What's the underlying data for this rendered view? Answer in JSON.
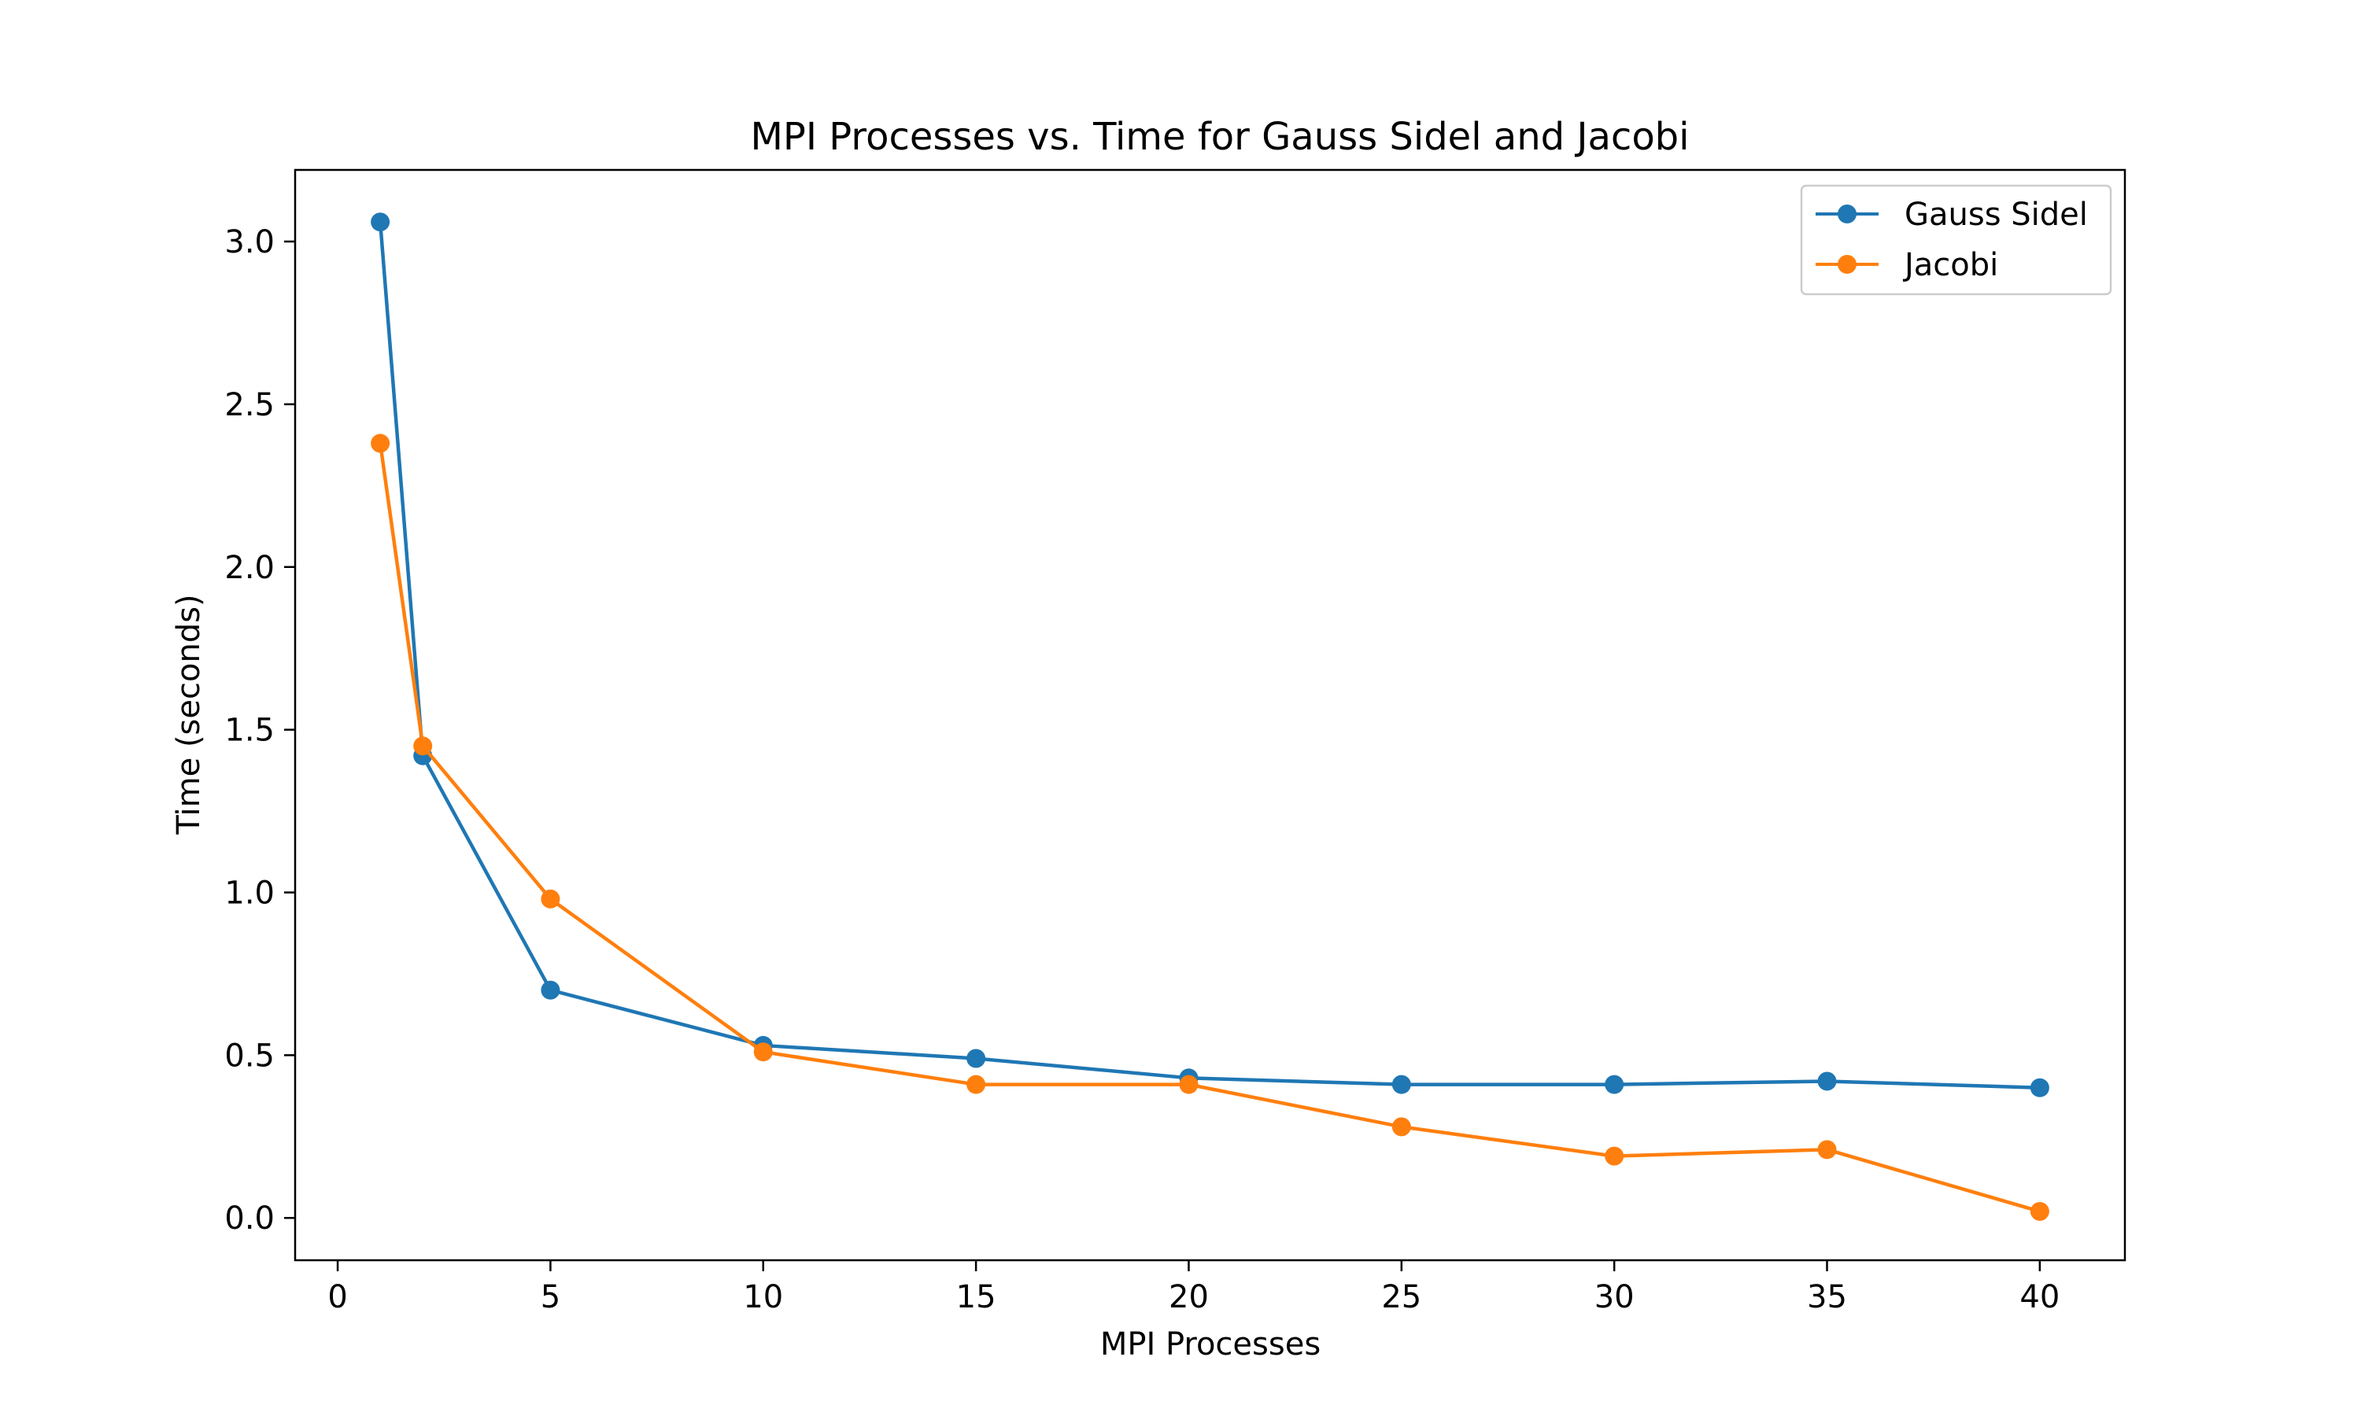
{
  "chart_data": {
    "type": "line",
    "title": "MPI Processes vs. Time for Gauss Sidel and Jacobi",
    "xlabel": "MPI Processes",
    "ylabel": "Time (seconds)",
    "x": [
      1,
      2,
      5,
      10,
      15,
      20,
      25,
      30,
      35,
      40
    ],
    "xlim": [
      -1,
      42
    ],
    "ylim": [
      -0.13,
      3.22
    ],
    "xticks": [
      0,
      5,
      10,
      15,
      20,
      25,
      30,
      35,
      40
    ],
    "xtick_labels": [
      "0",
      "5",
      "10",
      "15",
      "20",
      "25",
      "30",
      "35",
      "40"
    ],
    "yticks": [
      0.0,
      0.5,
      1.0,
      1.5,
      2.0,
      2.5,
      3.0
    ],
    "ytick_labels": [
      "0.0",
      "0.5",
      "1.0",
      "1.5",
      "2.0",
      "2.5",
      "3.0"
    ],
    "grid": false,
    "legend_position": "top-right",
    "series": [
      {
        "name": "Gauss Sidel",
        "color": "#1f77b4",
        "marker": "circle",
        "values": [
          3.06,
          1.42,
          0.7,
          0.53,
          0.49,
          0.43,
          0.41,
          0.41,
          0.42,
          0.4
        ]
      },
      {
        "name": "Jacobi",
        "color": "#ff7f0e",
        "marker": "circle",
        "values": [
          2.38,
          1.45,
          0.98,
          0.51,
          0.41,
          0.41,
          0.28,
          0.19,
          0.21,
          0.02
        ]
      }
    ]
  }
}
